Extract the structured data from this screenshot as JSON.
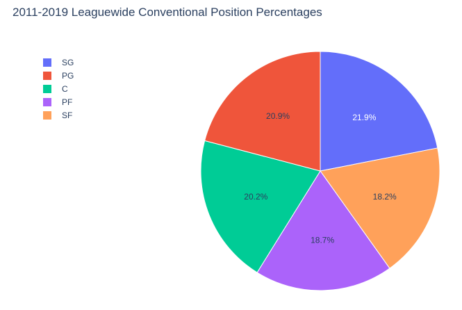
{
  "chart_data": {
    "type": "pie",
    "title": "2011-2019 Leaguewide Conventional Position Percentages",
    "categories": [
      "SG",
      "PG",
      "C",
      "PF",
      "SF"
    ],
    "values": [
      21.9,
      20.9,
      20.2,
      18.7,
      18.2
    ],
    "slice_order": [
      "SG",
      "SF",
      "PF",
      "C",
      "PG"
    ],
    "labels": {
      "SG": "21.9%",
      "SF": "18.2%",
      "PF": "18.7%",
      "C": "20.2%",
      "PG": "20.9%"
    },
    "colors": {
      "SG": "#636efa",
      "PG": "#EF553B",
      "C": "#00cc96",
      "PF": "#ab63fa",
      "SF": "#FFA15A"
    },
    "label_colors": {
      "SG": "#ffffff",
      "PG": "#2a3f5f",
      "C": "#2a3f5f",
      "PF": "#2a3f5f",
      "SF": "#2a3f5f"
    },
    "direction": "clockwise",
    "start": "top",
    "legend_position": "top-left"
  }
}
